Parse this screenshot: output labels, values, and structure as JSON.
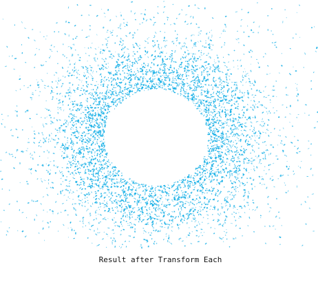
{
  "figure": {
    "caption": "Result after Transform Each",
    "colors": {
      "particle": "#12aee6",
      "background": "#ffffff",
      "caption_text": "#111111"
    }
  }
}
